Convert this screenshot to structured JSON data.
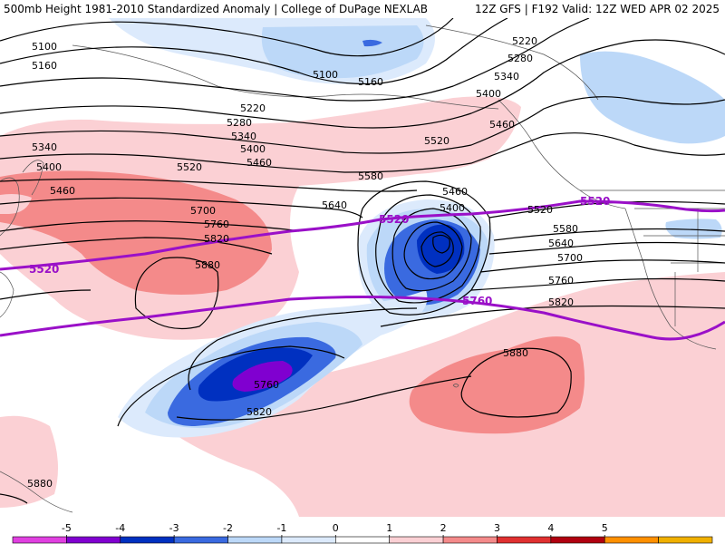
{
  "header": {
    "left": "500mb Height 1981-2010 Standardized Anomaly | College of DuPage NEXLAB",
    "right": "12Z GFS | F192 Valid: 12Z WED APR 02 2025"
  },
  "contour_labels": [
    "5100",
    "5160",
    "5220",
    "5280",
    "5340",
    "5400",
    "5460",
    "5520",
    "5580",
    "5640",
    "5700",
    "5760",
    "5820",
    "5880"
  ],
  "colors": {
    "neg5": "#e040e0",
    "neg4": "#8000d0",
    "neg3": "#0030c0",
    "neg2": "#3a6ae0",
    "neg1": "#bcd8f8",
    "neg0": "#dceafc",
    "zero": "#ffffff",
    "pos1": "#fbd0d4",
    "pos2": "#f48a8a",
    "pos3": "#e03030",
    "pos4": "#b00010",
    "pos5": "#ff9000",
    "pos6": "#f0b000",
    "highlight": "#9a10c8"
  },
  "colorbar": {
    "ticks": [
      "-5",
      "-4",
      "-3",
      "-2",
      "-1",
      "0",
      "1",
      "2",
      "3",
      "4",
      "5"
    ]
  }
}
